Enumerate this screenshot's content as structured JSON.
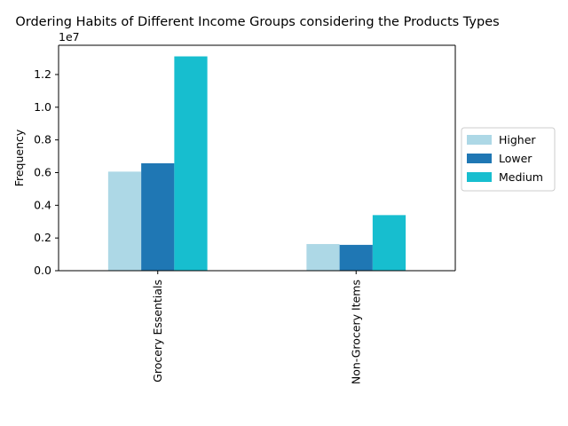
{
  "chart_data": {
    "type": "bar",
    "title": "Ordering Habits of Different Income Groups considering the Products Types",
    "xlabel": "",
    "ylabel": "Frequency",
    "y_offset_label": "1e7",
    "y_scale": 10000000,
    "ylim": [
      0,
      13790000
    ],
    "y_ticks": [
      0,
      2000000,
      4000000,
      6000000,
      8000000,
      10000000,
      12000000
    ],
    "y_tick_labels": [
      "0.0",
      "0.2",
      "0.4",
      "0.6",
      "0.8",
      "1.0",
      "1.2"
    ],
    "categories": [
      "Grocery Essentials",
      "Non-Grocery Items"
    ],
    "series": [
      {
        "name": "Higher",
        "color": "#add8e6",
        "values": [
          6060000,
          1630000
        ]
      },
      {
        "name": "Lower",
        "color": "#1f77b4",
        "values": [
          6570000,
          1580000
        ]
      },
      {
        "name": "Medium",
        "color": "#17becf",
        "values": [
          13110000,
          3400000
        ]
      }
    ],
    "legend_position": "center-right outside",
    "grid": false
  }
}
